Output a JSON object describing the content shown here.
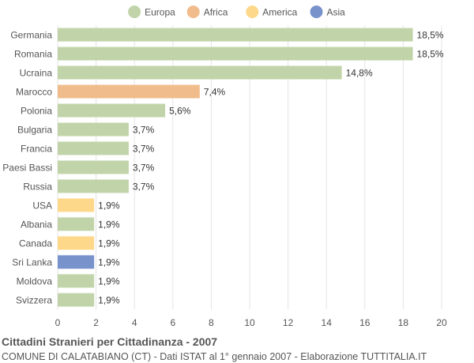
{
  "chart_data": {
    "type": "bar",
    "orientation": "horizontal",
    "categories": [
      "Germania",
      "Romania",
      "Ucraina",
      "Marocco",
      "Polonia",
      "Bulgaria",
      "Francia",
      "Paesi Bassi",
      "Russia",
      "USA",
      "Albania",
      "Canada",
      "Sri Lanka",
      "Moldova",
      "Svizzera"
    ],
    "values": [
      18.5,
      18.5,
      14.8,
      7.4,
      5.6,
      3.7,
      3.7,
      3.7,
      3.7,
      1.9,
      1.9,
      1.9,
      1.9,
      1.9,
      1.9
    ],
    "value_labels": [
      "18,5%",
      "18,5%",
      "14,8%",
      "7,4%",
      "5,6%",
      "3,7%",
      "3,7%",
      "3,7%",
      "3,7%",
      "1,9%",
      "1,9%",
      "1,9%",
      "1,9%",
      "1,9%",
      "1,9%"
    ],
    "continent": [
      "Europa",
      "Europa",
      "Europa",
      "Africa",
      "Europa",
      "Europa",
      "Europa",
      "Europa",
      "Europa",
      "America",
      "Europa",
      "America",
      "Asia",
      "Europa",
      "Europa"
    ],
    "legend": [
      {
        "name": "Europa",
        "color": "#c1d4a9"
      },
      {
        "name": "Africa",
        "color": "#f0bc8c"
      },
      {
        "name": "America",
        "color": "#fed88a"
      },
      {
        "name": "Asia",
        "color": "#7893cc"
      }
    ],
    "legend_position": "top-center",
    "xlim": [
      0,
      20
    ],
    "xticks": [
      0,
      2,
      4,
      6,
      8,
      10,
      12,
      14,
      16,
      18,
      20
    ],
    "grid": true
  },
  "footer": {
    "title": "Cittadini Stranieri per Cittadinanza - 2007",
    "subtitle": "COMUNE DI CALATABIANO (CT) - Dati ISTAT al 1° gennaio 2007 - Elaborazione TUTTITALIA.IT"
  }
}
